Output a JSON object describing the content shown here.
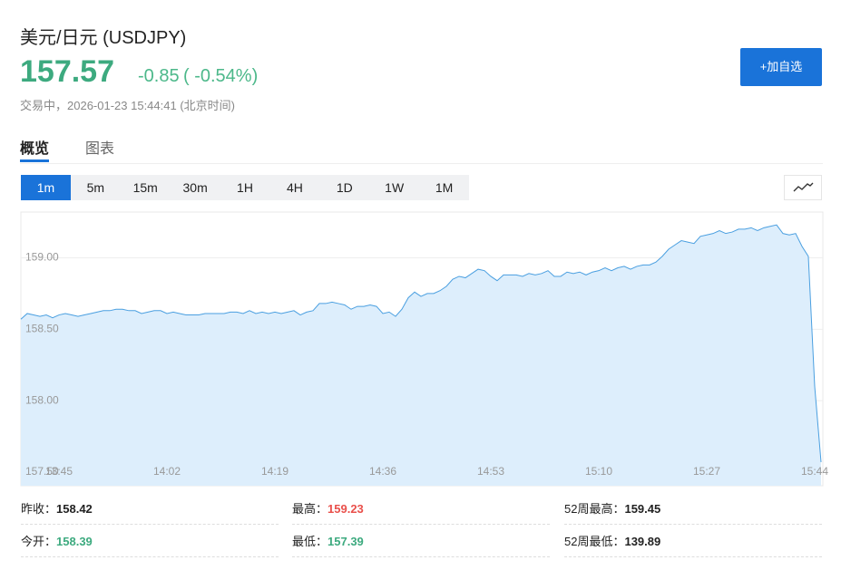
{
  "header": {
    "title": "美元/日元 (USDJPY)",
    "price": 157.57,
    "change": -0.85,
    "change_percent": "( -0.54%)",
    "status": "交易中，2026-01-23 15:44:41 (北京时间)",
    "button": "+加自选"
  },
  "tabs": [
    "概览",
    "图表"
  ],
  "intervals": [
    "1m",
    "5m",
    "15m",
    "30m",
    "1H",
    "4H",
    "1D",
    "1W",
    "1M"
  ],
  "chart_data": {
    "type": "area",
    "color": "#4a9fe0",
    "categories": [
      null,
      null,
      null,
      null,
      null,
      null,
      "13:45",
      null,
      null,
      null,
      null,
      null,
      null,
      null,
      null,
      null,
      null,
      null,
      null,
      null,
      null,
      null,
      null,
      "14:02",
      null,
      null,
      null,
      null,
      null,
      null,
      null,
      null,
      null,
      null,
      null,
      null,
      null,
      null,
      null,
      null,
      "14:19",
      null,
      null,
      null,
      null,
      null,
      null,
      null,
      null,
      null,
      null,
      null,
      null,
      null,
      null,
      null,
      null,
      "14:36",
      null,
      null,
      null,
      null,
      null,
      null,
      null,
      null,
      null,
      null,
      null,
      null,
      null,
      null,
      null,
      null,
      "14:53",
      null,
      null,
      null,
      null,
      null,
      null,
      null,
      null,
      null,
      null,
      null,
      null,
      null,
      null,
      null,
      null,
      "15:10",
      null,
      null,
      null,
      null,
      null,
      null,
      null,
      null,
      null,
      null,
      null,
      null,
      null,
      null,
      null,
      null,
      "15:27",
      null,
      null,
      null,
      null,
      null,
      null,
      null,
      null,
      null,
      null,
      null,
      null,
      null,
      null,
      null,
      null,
      "15:44",
      null
    ],
    "values": [
      158.57,
      158.61,
      158.6,
      158.59,
      158.6,
      158.58,
      158.6,
      158.61,
      158.6,
      158.59,
      158.6,
      158.61,
      158.62,
      158.63,
      158.63,
      158.64,
      158.64,
      158.63,
      158.63,
      158.61,
      158.62,
      158.63,
      158.63,
      158.61,
      158.62,
      158.61,
      158.6,
      158.6,
      158.6,
      158.61,
      158.61,
      158.61,
      158.61,
      158.62,
      158.62,
      158.61,
      158.63,
      158.61,
      158.62,
      158.61,
      158.62,
      158.61,
      158.62,
      158.63,
      158.6,
      158.62,
      158.63,
      158.68,
      158.68,
      158.69,
      158.68,
      158.67,
      158.64,
      158.66,
      158.66,
      158.67,
      158.66,
      158.61,
      158.62,
      158.59,
      158.64,
      158.72,
      158.76,
      158.73,
      158.75,
      158.75,
      158.77,
      158.8,
      158.85,
      158.87,
      158.86,
      158.89,
      158.92,
      158.91,
      158.87,
      158.84,
      158.88,
      158.88,
      158.88,
      158.87,
      158.89,
      158.88,
      158.89,
      158.91,
      158.87,
      158.87,
      158.9,
      158.89,
      158.9,
      158.88,
      158.9,
      158.91,
      158.93,
      158.91,
      158.93,
      158.94,
      158.92,
      158.94,
      158.95,
      158.95,
      158.97,
      159.01,
      159.06,
      159.09,
      159.12,
      159.11,
      159.1,
      159.15,
      159.16,
      159.17,
      159.19,
      159.17,
      159.18,
      159.2,
      159.2,
      159.21,
      159.19,
      159.21,
      159.22,
      159.23,
      159.17,
      159.16,
      159.17,
      159.08,
      159.01,
      158.1,
      157.57
    ],
    "ylim": [
      157.405,
      159.32
    ],
    "yticks": [
      {
        "value": 157.5,
        "label": "157.50"
      },
      {
        "value": 158,
        "label": "158.00"
      },
      {
        "value": 158.5,
        "label": "158.50"
      },
      {
        "value": 159,
        "label": "159.00"
      }
    ],
    "grid": true
  },
  "stats": [
    {
      "label": "昨收：",
      "value": 158.42
    },
    {
      "label": "最高：",
      "value": 159.23
    },
    {
      "label": "52周最高：",
      "value": 159.45
    },
    {
      "label": "今开：",
      "value": 158.39
    },
    {
      "label": "最低：",
      "value": 157.39
    },
    {
      "label": "52周最低：",
      "value": 139.89
    }
  ]
}
